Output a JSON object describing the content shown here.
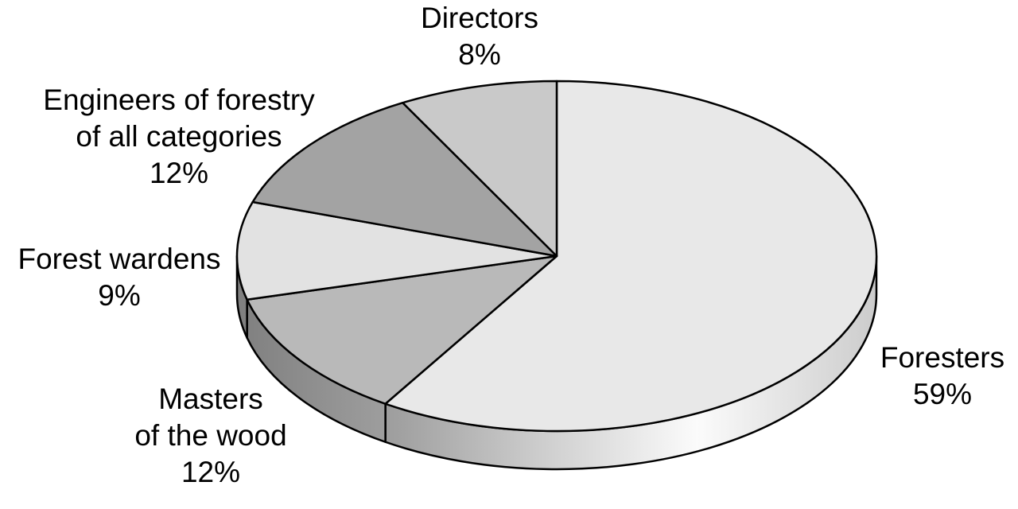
{
  "chart_data": {
    "type": "pie",
    "title": "",
    "style": "3d-grayscale",
    "start_angle_deg": 0,
    "direction": "clockwise",
    "labels_position": "outside",
    "legend": "none",
    "unit": "%",
    "categories": [
      "Foresters",
      "Masters of the wood",
      "Forest wardens",
      "Engineers of forestry of all categories",
      "Directors"
    ],
    "values": [
      59,
      12,
      9,
      12,
      8
    ],
    "colors": [
      "#e8e8e8",
      "#b9b9b9",
      "#e2e2e2",
      "#a3a3a3",
      "#c9c9c9"
    ],
    "outline_color": "#000000"
  },
  "labels": {
    "directors": [
      "Directors",
      "8%"
    ],
    "engineers": [
      "Engineers of forestry",
      "of all categories",
      "12%"
    ],
    "forest_wardens": [
      "Forest wardens",
      "9%"
    ],
    "masters": [
      "Masters",
      "of the wood",
      "12%"
    ],
    "foresters": [
      "Foresters",
      "59%"
    ]
  }
}
